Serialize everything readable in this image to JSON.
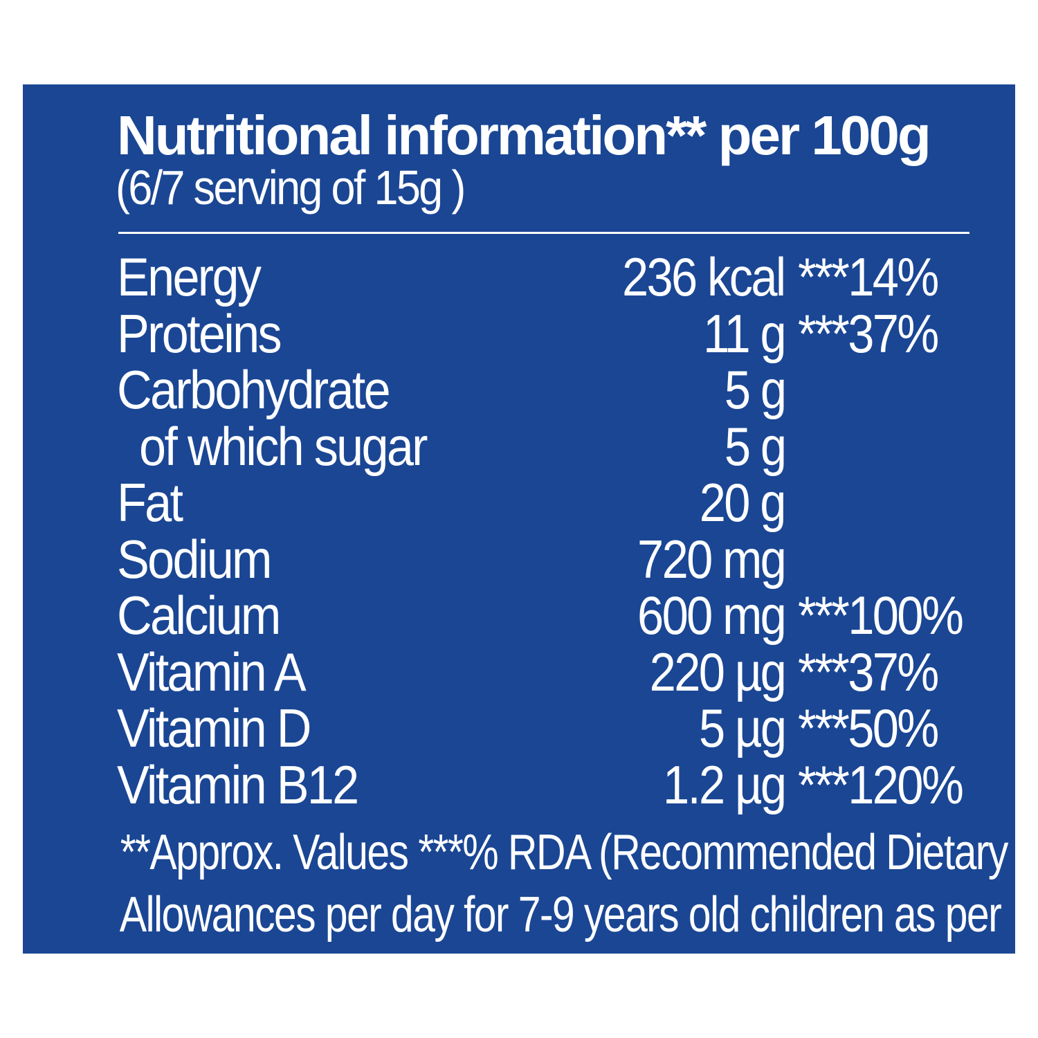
{
  "panel": {
    "title": "Nutritional information** per 100g",
    "subtitle": "(6/7 serving of 15g )"
  },
  "nutrients": [
    {
      "name": "Energy",
      "amount": "236 kcal",
      "rda": "***14%"
    },
    {
      "name": "Proteins",
      "amount": "11 g",
      "rda": "***37%"
    },
    {
      "name": "Carbohydrate",
      "amount": "5 g",
      "rda": ""
    },
    {
      "name": "of which sugar",
      "amount": "5 g",
      "rda": ""
    },
    {
      "name": "Fat",
      "amount": "20 g",
      "rda": ""
    },
    {
      "name": "Sodium",
      "amount": "720 mg",
      "rda": ""
    },
    {
      "name": "Calcium",
      "amount": "600 mg",
      "rda": "***100%"
    },
    {
      "name": "Vitamin A",
      "amount": "220 µg",
      "rda": "***37%"
    },
    {
      "name": "Vitamin D",
      "amount": "5 µg",
      "rda": "***50%"
    },
    {
      "name": "Vitamin B12",
      "amount": "1.2 µg",
      "rda": "***120%"
    }
  ],
  "footnote": {
    "line1": "**Approx. Values ***% RDA (Recommended Dietary",
    "line2": "Allowances per day for 7-9 years old children as per"
  },
  "colors": {
    "panel_background": "#1a4694",
    "text": "#ffffff"
  }
}
